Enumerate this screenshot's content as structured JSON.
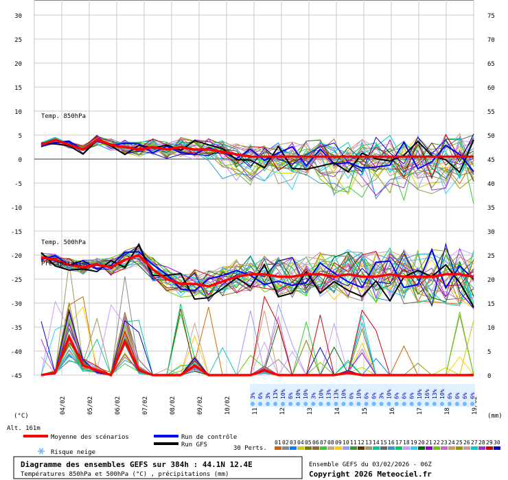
{
  "chart_data": {
    "type": "line",
    "title": "Diagramme des ensembles GEFS sur 384h : 44.1N 12.4E",
    "subtitle": "Températures 850hPa et 500hPa (°C) , précipitations (mm)",
    "left_axis": {
      "unit": "(°C)",
      "ticks": [
        30,
        25,
        20,
        15,
        10,
        5,
        0,
        -5,
        -10,
        -15,
        -20,
        -25,
        -30,
        -35,
        -40,
        -45
      ],
      "range": [
        -45,
        30
      ]
    },
    "right_axis": {
      "unit": "(mm)",
      "ticks": [
        75,
        70,
        65,
        60,
        55,
        50,
        45,
        40,
        35,
        30,
        25,
        20,
        15,
        10,
        5,
        0
      ],
      "range": [
        0,
        75
      ]
    },
    "x_dates": [
      "04/02",
      "05/02",
      "06/02",
      "07/02",
      "08/02",
      "09/02",
      "10/02",
      "11/02",
      "12/02",
      "13/02",
      "14/02",
      "15/02",
      "16/02",
      "17/02",
      "18/02",
      "19/02"
    ],
    "altitude": "Alt. 161m",
    "panel_labels": [
      "Temp. 850hPa",
      "Temp. 500hPa",
      "Précipitation"
    ],
    "snow_risk_pct": [
      "3%",
      "6%",
      "3%",
      "13%",
      "10%",
      "6%",
      "10%",
      "10%",
      "3%",
      "10%",
      "13%",
      "13%",
      "10%",
      "6%",
      "10%",
      "6%",
      "6%",
      "3%",
      "10%",
      "6%",
      "6%",
      "6%",
      "10%",
      "16%",
      "13%",
      "10%",
      "6%",
      "6%",
      "6%",
      "6%"
    ],
    "series": [
      {
        "name": "Moyenne des scénarios",
        "t850_mean": [
          3,
          4,
          3,
          2,
          4,
          3,
          2.5,
          2,
          2.5,
          2,
          2.5,
          2,
          2,
          1.5,
          1,
          0.5,
          0.5,
          0.5,
          0.5,
          0.5,
          0.5,
          0.5,
          0.5,
          0.5,
          0.5,
          0.5,
          0.5,
          0.5,
          0.5,
          0.5,
          0.5,
          0.5
        ],
        "t500_mean": [
          -20.5,
          -21,
          -22,
          -22.5,
          -22,
          -22.5,
          -21,
          -20,
          -23,
          -25,
          -26,
          -26,
          -26.5,
          -25.5,
          -24.5,
          -24,
          -24,
          -24.5,
          -24.5,
          -24,
          -24,
          -24.5,
          -24,
          -24.5,
          -24.5,
          -24,
          -24.5,
          -24.5,
          -24.5,
          -24,
          -24,
          -24.5
        ],
        "precip_mean_mm": [
          0,
          0.5,
          8,
          2,
          1,
          0,
          7,
          1,
          0,
          0,
          0,
          2,
          0,
          0,
          0,
          0,
          1,
          0,
          0,
          0,
          0,
          0,
          0.5,
          0,
          0,
          0,
          0,
          0,
          0,
          0,
          0,
          0
        ]
      },
      {
        "name": "Run de contrôle"
      },
      {
        "name": "Run GFS"
      }
    ]
  },
  "legend": {
    "mean_label": "Moyenne des scénarios",
    "control_label": "Run de contrôle",
    "gfs_label": "Run GFS",
    "snow_label": "Risque neige",
    "perts_label": "30 Perts.",
    "member_numbers": [
      "01",
      "02",
      "03",
      "04",
      "05",
      "06",
      "07",
      "08",
      "09",
      "10",
      "11",
      "12",
      "13",
      "14",
      "15",
      "16",
      "17",
      "18",
      "19",
      "20",
      "21",
      "22",
      "23",
      "24",
      "25",
      "26",
      "27",
      "28",
      "29",
      "30"
    ],
    "member_colors": [
      "#cc6600",
      "#888888",
      "#0080ff",
      "#cccc00",
      "#808000",
      "#996633",
      "#33cc33",
      "#ccaa88",
      "#ffcc00",
      "#9999ff",
      "#339933",
      "#663300",
      "#999966",
      "#00cc99",
      "#666666",
      "#3399cc",
      "#00cc66",
      "#cc99ff",
      "#33ccff",
      "#006600",
      "#9900cc",
      "#66cc00",
      "#cc66cc",
      "#cc9966",
      "#999900",
      "#cc9999",
      "#00cccc",
      "#9933cc",
      "#cc0000",
      "#0000cc"
    ],
    "colors": {
      "mean": "#ff0000",
      "control": "#0000ff",
      "gfs": "#000000",
      "snow": "#6fb7ff"
    }
  },
  "footer": {
    "title": "Diagramme des ensembles GEFS sur 384h : 44.1N 12.4E",
    "subtitle": "Températures 850hPa et 500hPa (°C) , précipitations (mm)",
    "run": "Ensemble GEFS du 03/02/2026 - 06Z",
    "copyright": "Copyright 2026 Meteociel.fr"
  }
}
